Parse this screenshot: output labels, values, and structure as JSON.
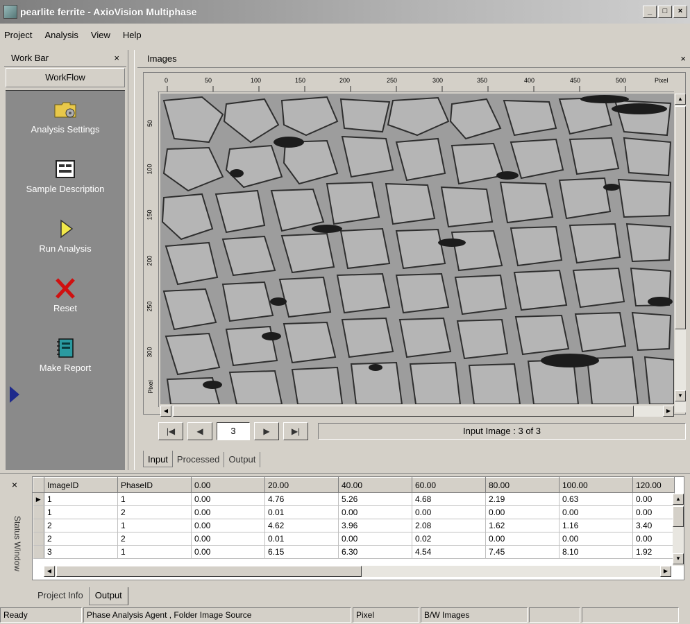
{
  "window": {
    "title": "pearlite ferrite - AxioVision Multiphase",
    "minimize": "_",
    "maximize": "□",
    "close": "×"
  },
  "menu": [
    "Project",
    "Analysis",
    "View",
    "Help"
  ],
  "workbar": {
    "title": "Work Bar",
    "close": "×",
    "tab": "WorkFlow",
    "items": [
      {
        "label": "Analysis Settings",
        "icon": "folder-settings-icon"
      },
      {
        "label": "Sample Description",
        "icon": "form-icon"
      },
      {
        "label": "Run Analysis",
        "icon": "play-icon"
      },
      {
        "label": "Reset",
        "icon": "red-x-icon"
      },
      {
        "label": "Make Report",
        "icon": "report-book-icon"
      }
    ]
  },
  "images_panel": {
    "title": "Images",
    "close": "×",
    "ruler_top": [
      "0",
      "50",
      "100",
      "150",
      "200",
      "250",
      "300",
      "350",
      "400",
      "450",
      "500",
      "Pixel"
    ],
    "ruler_left": [
      "50",
      "100",
      "150",
      "200",
      "250",
      "300",
      "Pixel"
    ],
    "nav": {
      "first": "|◀",
      "prev": "◀",
      "page": "3",
      "next": "▶",
      "last": "▶|",
      "status": "Input Image : 3 of 3"
    },
    "tabs": [
      "Input",
      "Processed",
      "Output"
    ],
    "active_tab": "Input"
  },
  "status_window": {
    "label": "Status Window",
    "close": "×",
    "columns": [
      "ImageID",
      "PhaseID",
      "0.00",
      "20.00",
      "40.00",
      "60.00",
      "80.00",
      "100.00",
      "120.00"
    ],
    "rows": [
      [
        "1",
        "1",
        "0.00",
        "4.76",
        "5.26",
        "4.68",
        "2.19",
        "0.63",
        "0.00"
      ],
      [
        "1",
        "2",
        "0.00",
        "0.01",
        "0.00",
        "0.00",
        "0.00",
        "0.00",
        "0.00"
      ],
      [
        "2",
        "1",
        "0.00",
        "4.62",
        "3.96",
        "2.08",
        "1.62",
        "1.16",
        "3.40"
      ],
      [
        "2",
        "2",
        "0.00",
        "0.01",
        "0.00",
        "0.02",
        "0.00",
        "0.00",
        "0.00"
      ],
      [
        "3",
        "1",
        "0.00",
        "6.15",
        "6.30",
        "4.54",
        "7.45",
        "8.10",
        "1.92"
      ]
    ],
    "tabs": [
      "Project Info",
      "Output"
    ],
    "active_tab": "Output"
  },
  "statusbar": [
    "Ready",
    "Phase Analysis Agent , Folder Image Source",
    "Pixel",
    "B/W Images",
    "",
    ""
  ]
}
